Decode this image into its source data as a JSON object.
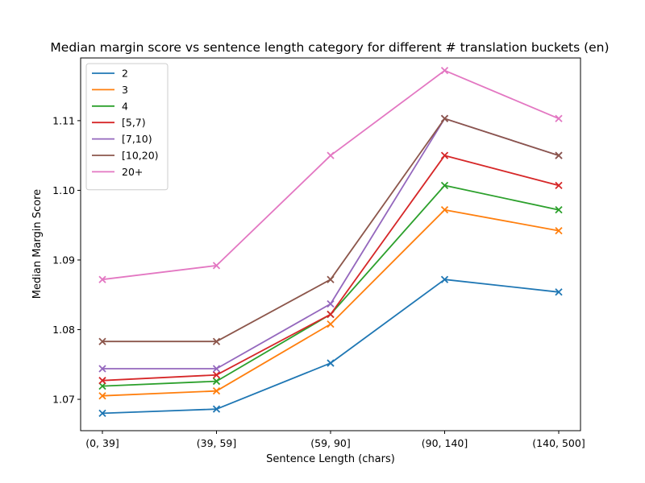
{
  "chart_data": {
    "type": "line",
    "title": "Median margin score vs sentence length category for different # translation buckets (en)",
    "xlabel": "Sentence Length (chars)",
    "ylabel": "Median Margin Score",
    "categories": [
      "(0, 39]",
      "(39, 59]",
      "(59, 90]",
      "(90, 140]",
      "(140, 500]"
    ],
    "ylim": [
      1.0655,
      1.119
    ],
    "yticks": [
      1.07,
      1.08,
      1.09,
      1.1,
      1.11
    ],
    "ytick_labels": [
      "1.07",
      "1.08",
      "1.09",
      "1.10",
      "1.11"
    ],
    "grid": false,
    "legend_position": "upper-left",
    "marker": "x",
    "series": [
      {
        "name": "2",
        "color": "#1f77b4",
        "values": [
          1.068,
          1.0686,
          1.0752,
          1.0872,
          1.0854
        ]
      },
      {
        "name": "3",
        "color": "#ff7f0e",
        "values": [
          1.0705,
          1.0712,
          1.0808,
          1.0972,
          1.0942
        ]
      },
      {
        "name": "4",
        "color": "#2ca02c",
        "values": [
          1.0719,
          1.0726,
          1.0822,
          1.1007,
          1.0972
        ]
      },
      {
        "name": "[5,7)",
        "color": "#d62728",
        "values": [
          1.0727,
          1.0735,
          1.0822,
          1.105,
          1.1007
        ]
      },
      {
        "name": "[7,10)",
        "color": "#9467bd",
        "values": [
          1.0744,
          1.0744,
          1.0837,
          1.1103,
          1.105
        ]
      },
      {
        "name": "[10,20)",
        "color": "#8c564b",
        "values": [
          1.0783,
          1.0783,
          1.0872,
          1.1103,
          1.105
        ]
      },
      {
        "name": "20+",
        "color": "#e377c2",
        "values": [
          1.0872,
          1.0892,
          1.105,
          1.1172,
          1.1103
        ]
      }
    ]
  }
}
